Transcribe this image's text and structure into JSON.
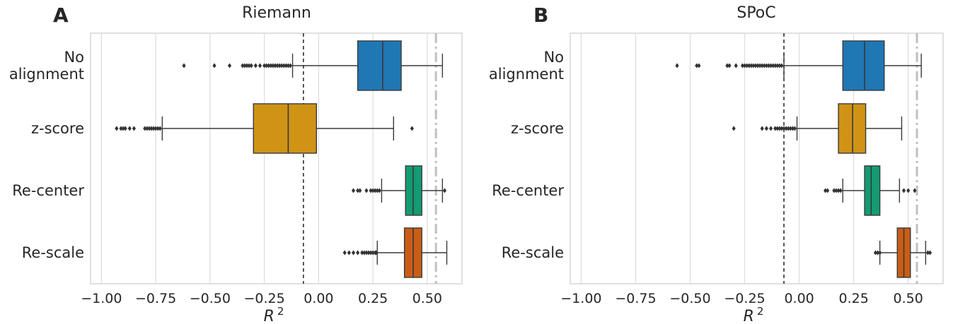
{
  "chart_data": [
    {
      "type": "box",
      "panel_label": "A",
      "title": "Riemann",
      "xlabel": "R",
      "xlabel_sup": "2",
      "xlim": [
        -1.05,
        0.66
      ],
      "xticks": [
        -1.0,
        -0.75,
        -0.5,
        -0.25,
        0.0,
        0.25,
        0.5
      ],
      "xtick_labels": [
        "−1.00",
        "−0.75",
        "−0.50",
        "−0.25",
        "0.00",
        "0.25",
        "0.50"
      ],
      "grid": "vertical",
      "reference_lines": [
        {
          "x": -0.07,
          "style": "dashed",
          "color": "#222222"
        },
        {
          "x": 0.54,
          "style": "dashdot",
          "color": "#c0c0c0"
        }
      ],
      "categories": [
        {
          "label": [
            "No",
            "alignment"
          ],
          "color": "#1f77b4",
          "q1": 0.18,
          "median": 0.295,
          "q3": 0.38,
          "whisker_low": -0.12,
          "whisker_high": 0.57,
          "outliers": [
            -0.62,
            -0.48,
            -0.41,
            -0.35,
            -0.34,
            -0.33,
            -0.32,
            -0.31,
            -0.29,
            -0.27,
            -0.25,
            -0.24,
            -0.23,
            -0.22,
            -0.21,
            -0.2,
            -0.19,
            -0.18,
            -0.17,
            -0.16,
            -0.15,
            -0.14,
            -0.13
          ]
        },
        {
          "label": [
            "z-score"
          ],
          "color": "#cf9316",
          "q1": -0.3,
          "median": -0.14,
          "q3": -0.01,
          "whisker_low": -0.72,
          "whisker_high": 0.345,
          "outliers": [
            -0.93,
            -0.91,
            -0.9,
            -0.89,
            -0.87,
            -0.85,
            -0.8,
            -0.79,
            -0.78,
            -0.77,
            -0.76,
            -0.75,
            -0.74,
            -0.73,
            0.43
          ]
        },
        {
          "label": [
            "Re-center"
          ],
          "color": "#139b73",
          "q1": 0.4,
          "median": 0.435,
          "q3": 0.475,
          "whisker_low": 0.29,
          "whisker_high": 0.57,
          "outliers": [
            0.16,
            0.18,
            0.19,
            0.22,
            0.24,
            0.25,
            0.26,
            0.27,
            0.28,
            0.58
          ]
        },
        {
          "label": [
            "Re-scale"
          ],
          "color": "#c95d16",
          "q1": 0.395,
          "median": 0.435,
          "q3": 0.475,
          "whisker_low": 0.27,
          "whisker_high": 0.59,
          "outliers": [
            0.12,
            0.14,
            0.16,
            0.18,
            0.2,
            0.21,
            0.22,
            0.23,
            0.24,
            0.25,
            0.26,
            0.265
          ]
        }
      ]
    },
    {
      "type": "box",
      "panel_label": "B",
      "title": "SPoC",
      "xlabel": "R",
      "xlabel_sup": "2",
      "xlim": [
        -1.05,
        0.66
      ],
      "xticks": [
        -1.0,
        -0.75,
        -0.5,
        -0.25,
        0.0,
        0.25,
        0.5
      ],
      "xtick_labels": [
        "−1.00",
        "−0.75",
        "−0.50",
        "−0.25",
        "0.00",
        "0.25",
        "0.50"
      ],
      "grid": "vertical",
      "reference_lines": [
        {
          "x": -0.07,
          "style": "dashed",
          "color": "#222222"
        },
        {
          "x": 0.54,
          "style": "dashdot",
          "color": "#c0c0c0"
        }
      ],
      "categories": [
        {
          "label": [
            "No",
            "alignment"
          ],
          "color": "#1f77b4",
          "q1": 0.2,
          "median": 0.3,
          "q3": 0.39,
          "whisker_low": -0.07,
          "whisker_high": 0.56,
          "outliers": [
            -0.56,
            -0.47,
            -0.46,
            -0.33,
            -0.32,
            -0.29,
            -0.26,
            -0.25,
            -0.24,
            -0.23,
            -0.22,
            -0.21,
            -0.2,
            -0.19,
            -0.18,
            -0.17,
            -0.16,
            -0.15,
            -0.14,
            -0.13,
            -0.12,
            -0.11,
            -0.1,
            -0.09,
            -0.08
          ]
        },
        {
          "label": [
            "z-score"
          ],
          "color": "#cf9316",
          "q1": 0.18,
          "median": 0.245,
          "q3": 0.305,
          "whisker_low": -0.01,
          "whisker_high": 0.47,
          "outliers": [
            -0.3,
            -0.17,
            -0.15,
            -0.13,
            -0.11,
            -0.1,
            -0.09,
            -0.08,
            -0.07,
            -0.06,
            -0.05,
            -0.04,
            -0.03,
            -0.02
          ]
        },
        {
          "label": [
            "Re-center"
          ],
          "color": "#139b73",
          "q1": 0.3,
          "median": 0.33,
          "q3": 0.37,
          "whisker_low": 0.2,
          "whisker_high": 0.46,
          "outliers": [
            0.12,
            0.13,
            0.16,
            0.17,
            0.18,
            0.19,
            0.48,
            0.5,
            0.53
          ]
        },
        {
          "label": [
            "Re-scale"
          ],
          "color": "#c95d16",
          "q1": 0.45,
          "median": 0.48,
          "q3": 0.51,
          "whisker_low": 0.37,
          "whisker_high": 0.58,
          "outliers": [
            0.35,
            0.36,
            0.37,
            0.59,
            0.6
          ]
        }
      ]
    }
  ]
}
